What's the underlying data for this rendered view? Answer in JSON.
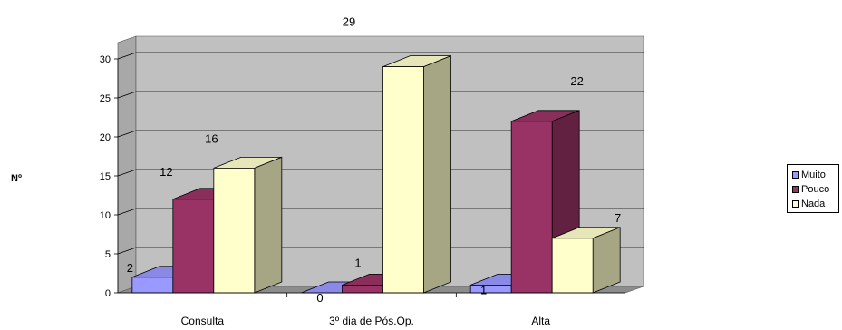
{
  "chart_data": {
    "type": "bar",
    "ylabel": "Nº",
    "ylim": [
      0,
      30
    ],
    "yticks": [
      "0",
      "5",
      "10",
      "15",
      "20",
      "25",
      "30"
    ],
    "categories": [
      "Consulta",
      "3º dia de Pós.Op.",
      "Alta"
    ],
    "series": [
      {
        "name": "Muito",
        "color": "#9999ff",
        "values": [
          2,
          0,
          1
        ],
        "labels": [
          "2",
          "0",
          "1"
        ]
      },
      {
        "name": "Pouco",
        "color": "#993366",
        "values": [
          12,
          1,
          22
        ],
        "labels": [
          "12",
          "1",
          "22"
        ]
      },
      {
        "name": "Nada",
        "color": "#ffffcc",
        "values": [
          16,
          29,
          7
        ],
        "labels": [
          "16",
          "29",
          "7"
        ]
      }
    ],
    "grid": true,
    "legend_position": "right",
    "wall_color": "#c0c0c0"
  }
}
